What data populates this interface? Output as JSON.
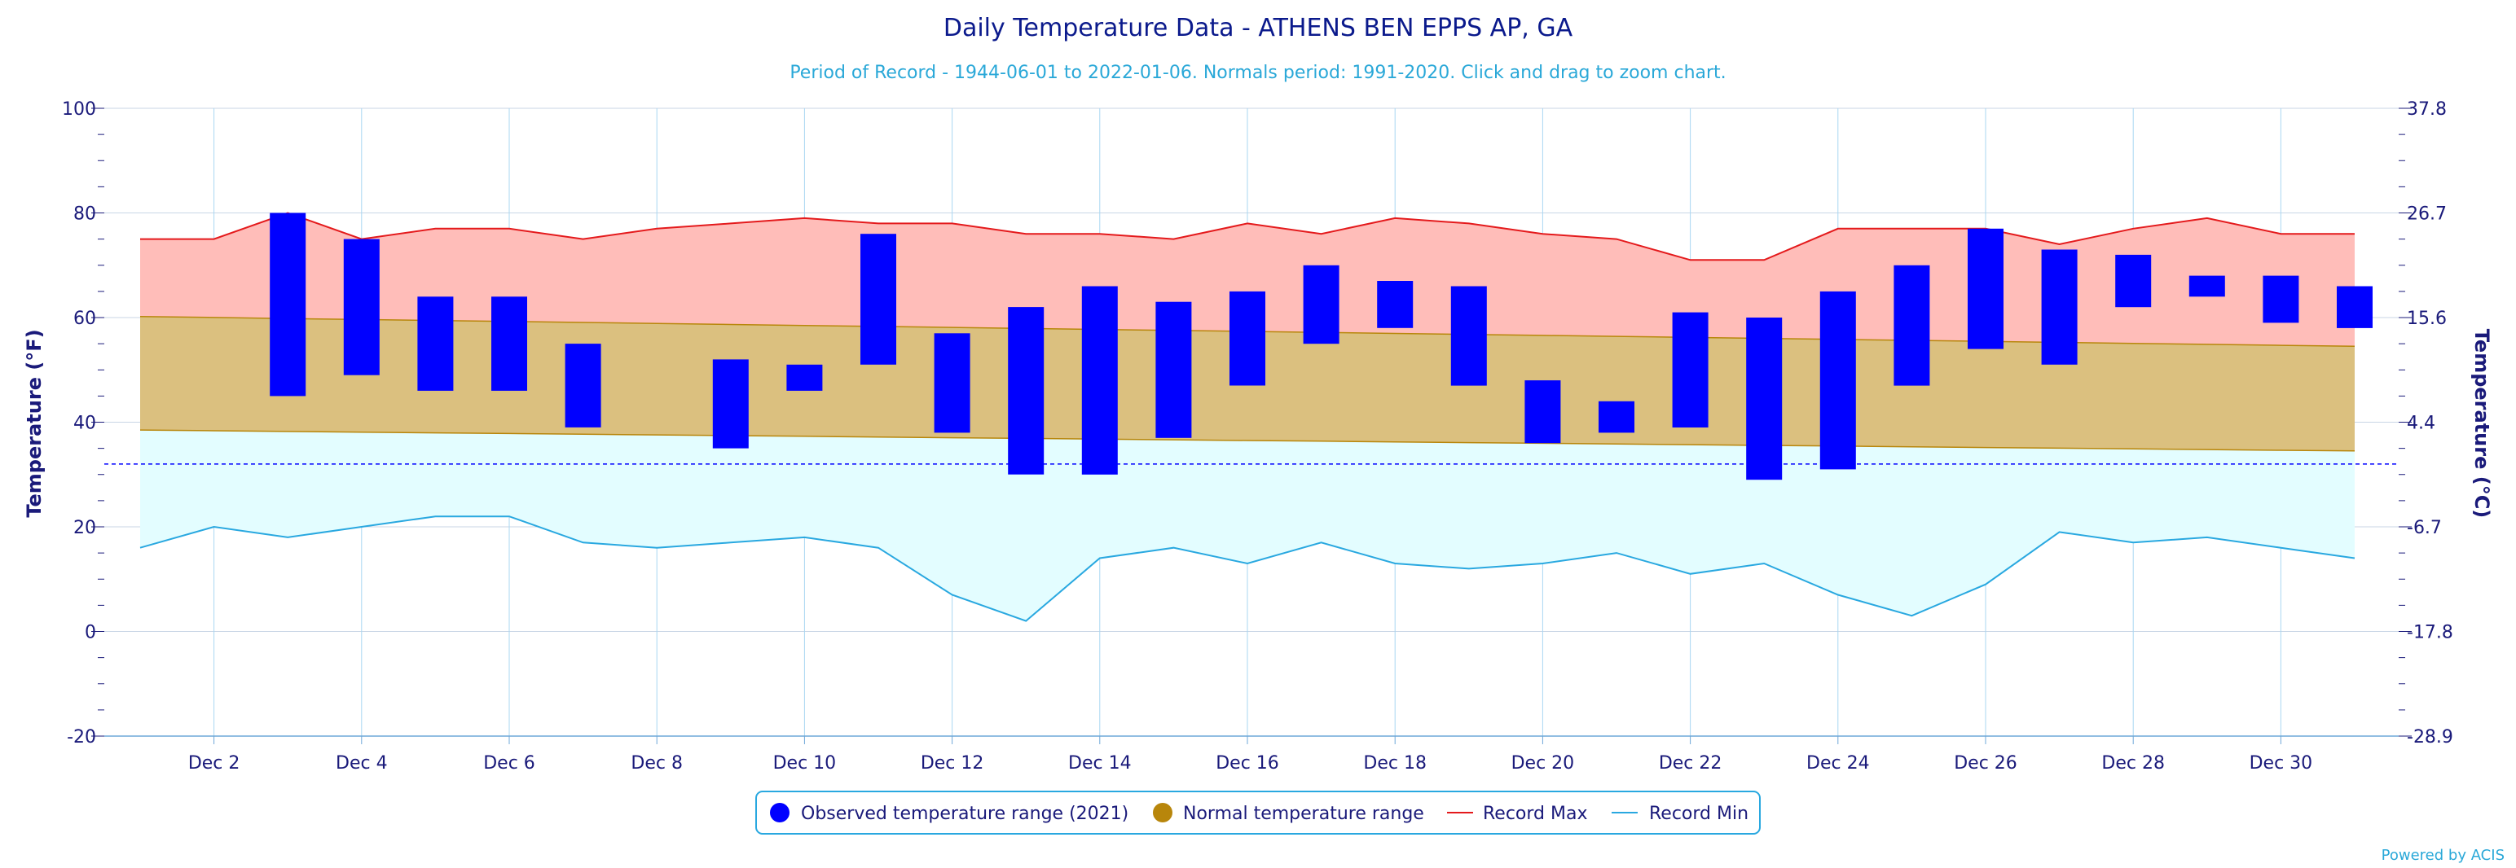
{
  "chart_data": {
    "type": "bar",
    "title": "Daily Temperature Data - ATHENS BEN EPPS AP, GA",
    "subtitle": "Period of Record - 1944-06-01 to 2022-01-06. Normals period: 1991-2020. Click and drag to zoom chart.",
    "ylabel": "Temperature (°F)",
    "ylabel_right": "Temperature (°C)",
    "ylim": [
      -20,
      100
    ],
    "yticks": [
      -20,
      0,
      20,
      40,
      60,
      80,
      100
    ],
    "yticks_right": [
      "-28.9",
      "-17.8",
      "-6.7",
      "4.4",
      "15.6",
      "26.7",
      "37.8"
    ],
    "freezing_line": 32,
    "grid": true,
    "legend_position": "bottom",
    "days": [
      1,
      2,
      3,
      4,
      5,
      6,
      7,
      8,
      9,
      10,
      11,
      12,
      13,
      14,
      15,
      16,
      17,
      18,
      19,
      20,
      21,
      22,
      23,
      24,
      25,
      26,
      27,
      28,
      29,
      30,
      31
    ],
    "xtick_labels": [
      "Dec 2",
      "Dec 4",
      "Dec 6",
      "Dec 8",
      "Dec 10",
      "Dec 12",
      "Dec 14",
      "Dec 16",
      "Dec 18",
      "Dec 20",
      "Dec 22",
      "Dec 24",
      "Dec 26",
      "Dec 28",
      "Dec 30"
    ],
    "xtick_days": [
      2,
      4,
      6,
      8,
      10,
      12,
      14,
      16,
      18,
      20,
      22,
      24,
      26,
      28,
      30
    ],
    "series": [
      {
        "name": "Observed temperature range (2021)",
        "color": "#0000ff",
        "low": [
          null,
          null,
          45,
          49,
          46,
          46,
          39,
          null,
          35,
          46,
          51,
          38,
          30,
          30,
          37,
          47,
          55,
          58,
          47,
          36,
          38,
          39,
          29,
          31,
          47,
          54,
          51,
          62,
          64,
          59,
          58
        ],
        "high": [
          null,
          null,
          80,
          75,
          64,
          64,
          55,
          null,
          52,
          51,
          76,
          57,
          62,
          66,
          63,
          65,
          70,
          67,
          66,
          48,
          44,
          61,
          60,
          65,
          70,
          77,
          73,
          72,
          68,
          68,
          66
        ]
      },
      {
        "name": "Normal temperature range",
        "color": "#b8860b",
        "low_start": 38.5,
        "low_end": 34.5,
        "high_start": 60.2,
        "high_end": 54.5
      },
      {
        "name": "Record Max",
        "color": "#e41a1c",
        "values": [
          75,
          75,
          80,
          75,
          77,
          77,
          75,
          77,
          78,
          79,
          78,
          78,
          76,
          76,
          75,
          78,
          76,
          79,
          78,
          76,
          75,
          71,
          71,
          77,
          77,
          77,
          74,
          77,
          79,
          76,
          76
        ]
      },
      {
        "name": "Record Min",
        "color": "#29a8e0",
        "values": [
          16,
          20,
          18,
          20,
          22,
          22,
          17,
          16,
          17,
          18,
          16,
          7,
          2,
          14,
          16,
          13,
          17,
          13,
          12,
          13,
          15,
          11,
          13,
          7,
          3,
          9,
          19,
          17,
          18,
          16,
          14
        ]
      }
    ]
  },
  "legend": {
    "observed": "Observed temperature range (2021)",
    "normal": "Normal temperature range",
    "record_max": "Record Max",
    "record_min": "Record Min"
  },
  "credit": "Powered by ACIS"
}
